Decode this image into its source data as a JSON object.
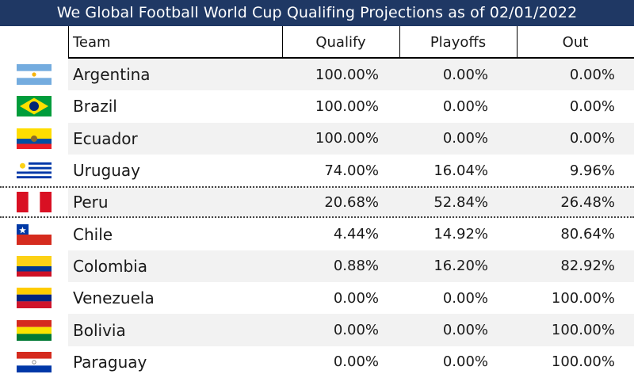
{
  "title": "We Global Football World Cup Qualifing Projections as of 02/01/2022",
  "chart_data": {
    "type": "table",
    "title": "We Global Football World Cup Qualifing Projections as of 02/01/2022",
    "columns": [
      "Team",
      "Qualify",
      "Playoffs",
      "Out"
    ],
    "rows": [
      {
        "team": "Argentina",
        "qualify": "100.00%",
        "playoffs": "0.00%",
        "out": "0.00%",
        "flag": "argentina-flag"
      },
      {
        "team": "Brazil",
        "qualify": "100.00%",
        "playoffs": "0.00%",
        "out": "0.00%",
        "flag": "brazil-flag"
      },
      {
        "team": "Ecuador",
        "qualify": "100.00%",
        "playoffs": "0.00%",
        "out": "0.00%",
        "flag": "ecuador-flag"
      },
      {
        "team": "Uruguay",
        "qualify": "74.00%",
        "playoffs": "16.04%",
        "out": "9.96%",
        "flag": "uruguay-flag"
      },
      {
        "team": "Peru",
        "qualify": "20.68%",
        "playoffs": "52.84%",
        "out": "26.48%",
        "flag": "peru-flag"
      },
      {
        "team": "Chile",
        "qualify": "4.44%",
        "playoffs": "14.92%",
        "out": "80.64%",
        "flag": "chile-flag"
      },
      {
        "team": "Colombia",
        "qualify": "0.88%",
        "playoffs": "16.20%",
        "out": "82.92%",
        "flag": "colombia-flag"
      },
      {
        "team": "Venezuela",
        "qualify": "0.00%",
        "playoffs": "0.00%",
        "out": "100.00%",
        "flag": "venezuela-flag"
      },
      {
        "team": "Bolivia",
        "qualify": "0.00%",
        "playoffs": "0.00%",
        "out": "100.00%",
        "flag": "bolivia-flag"
      },
      {
        "team": "Paraguay",
        "qualify": "0.00%",
        "playoffs": "0.00%",
        "out": "100.00%",
        "flag": "paraguay-flag"
      }
    ]
  },
  "colors": {
    "title_background": "#1f3864",
    "stripe": "#f2f2f2"
  }
}
